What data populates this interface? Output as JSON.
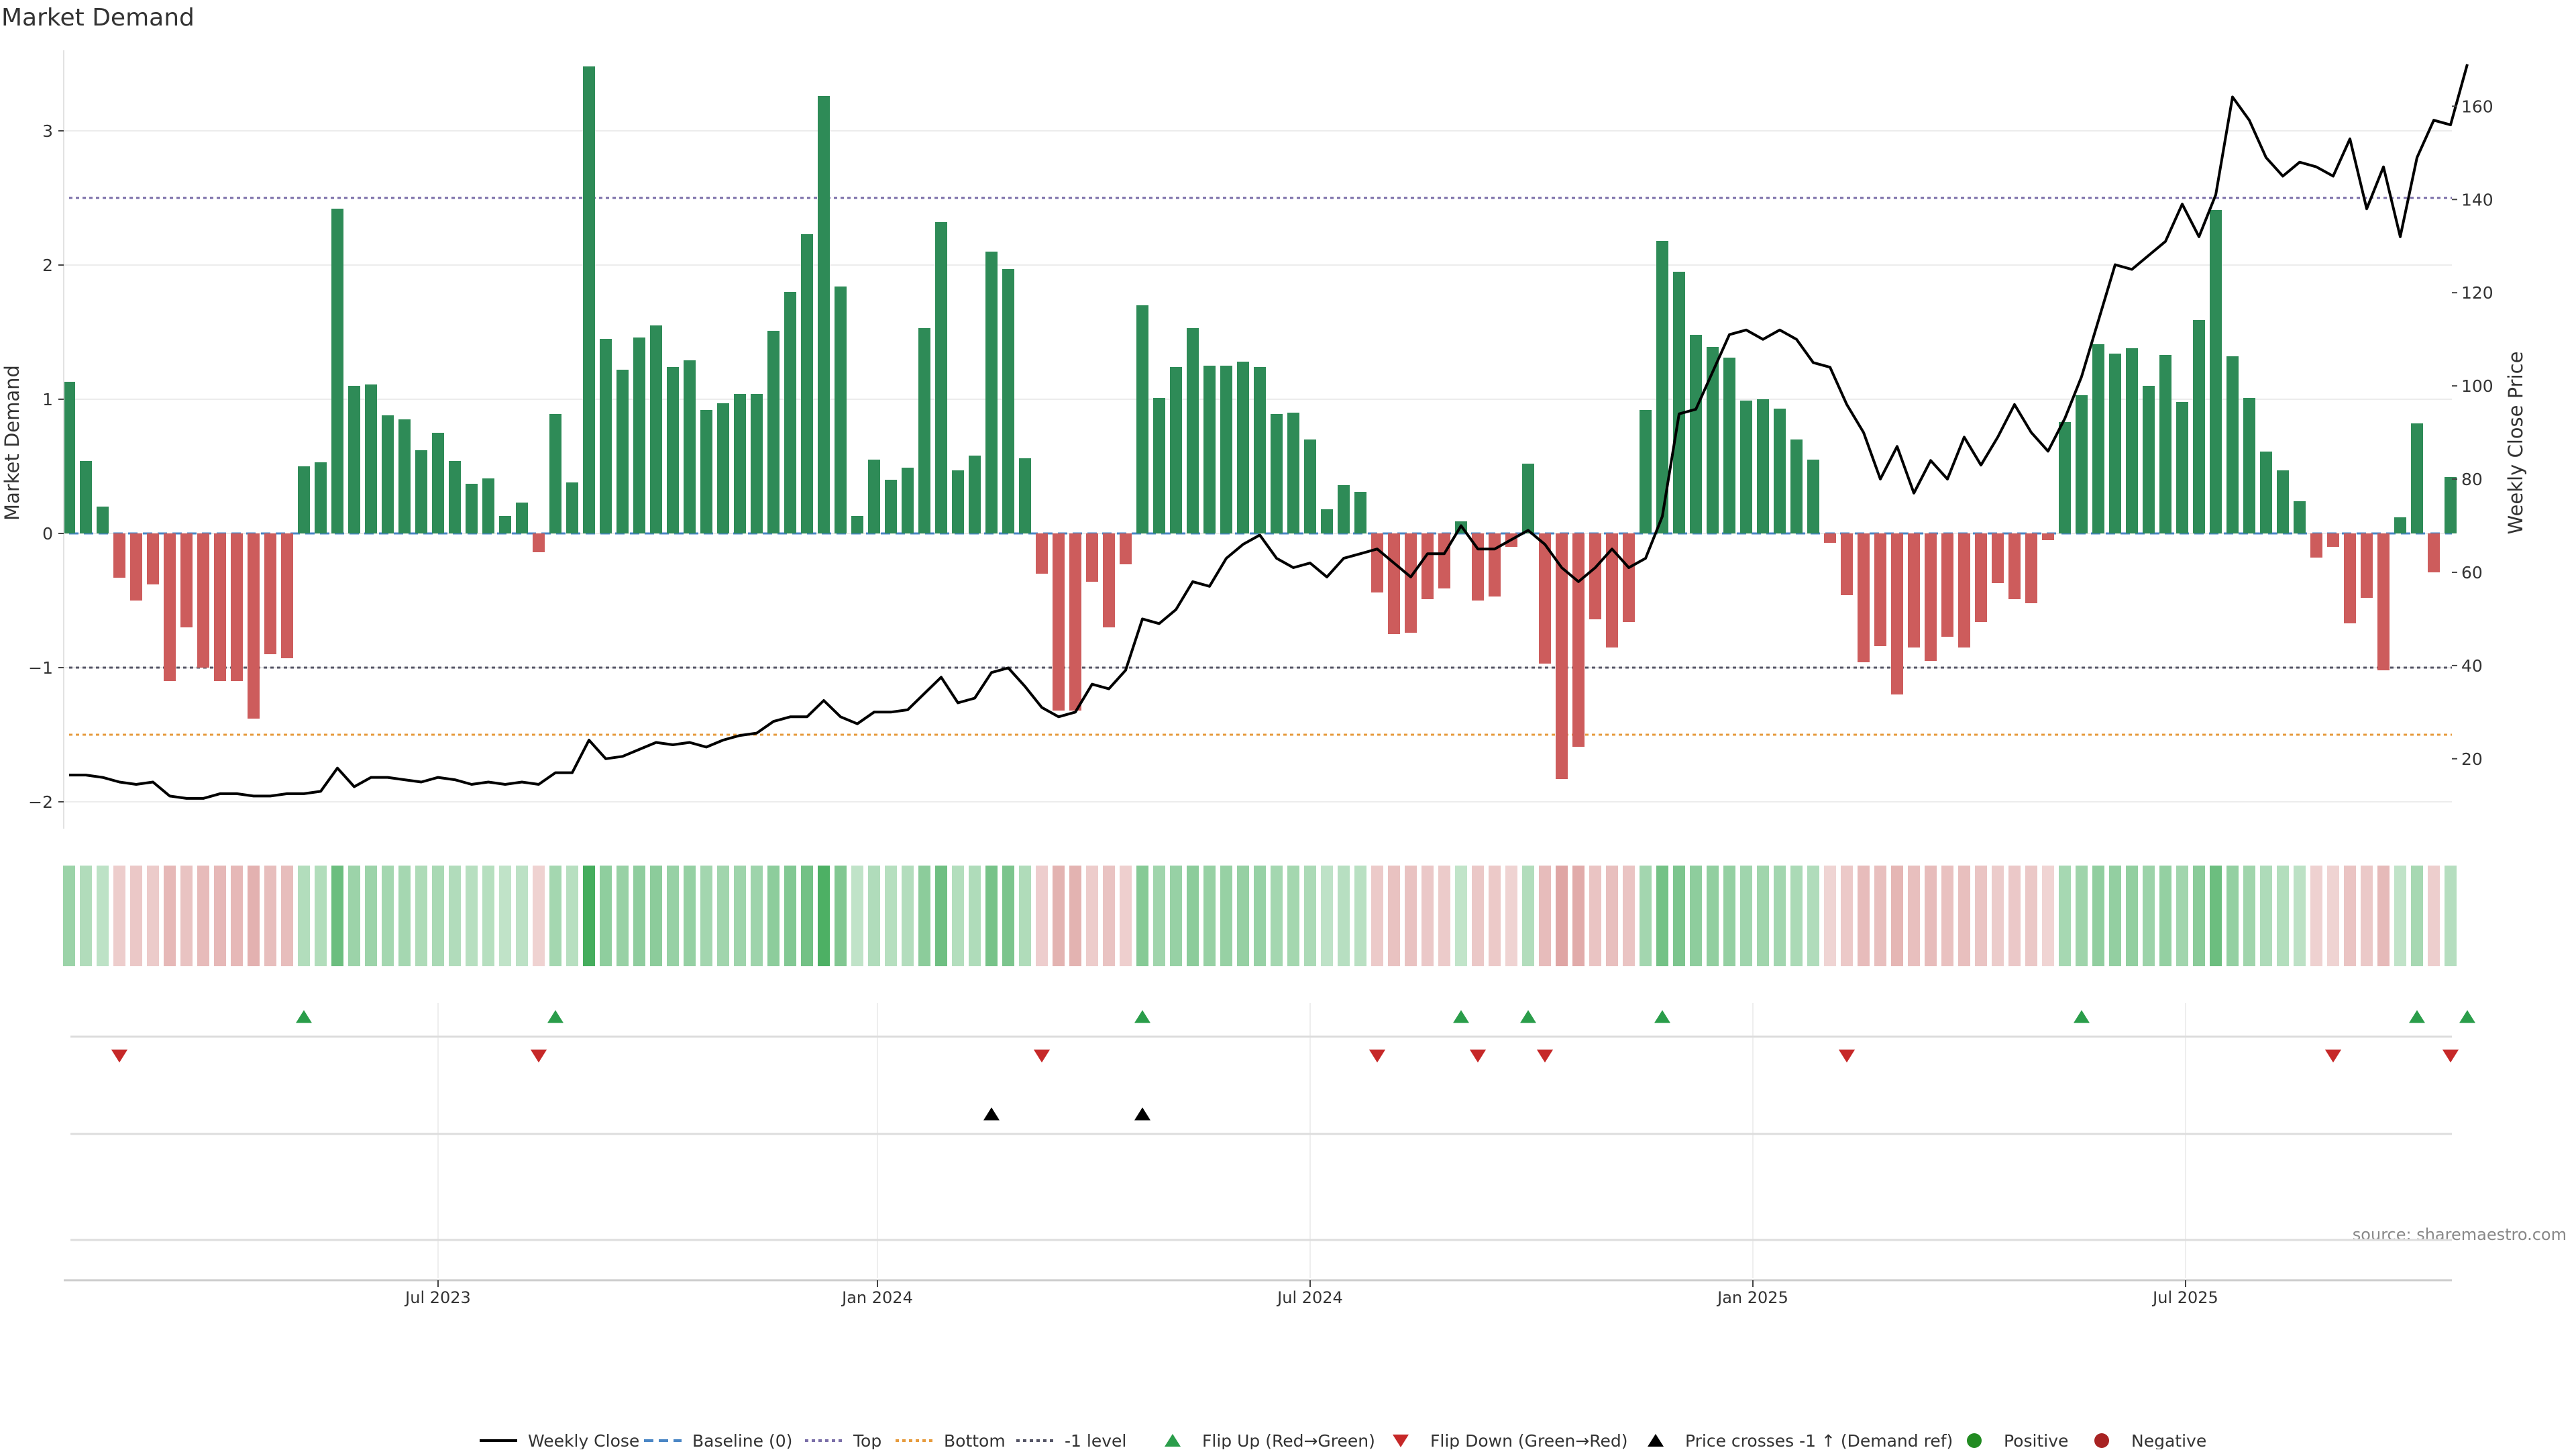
{
  "title": "Market Demand",
  "source": "source: sharemaestro.com",
  "colors": {
    "positive": "#2e8b57",
    "negative": "#cd5c5c",
    "price": "#000000",
    "top": "#7a6ea8",
    "bottom": "#e69a3c",
    "minus_one": "#555566",
    "baseline": "#4a86c5",
    "flip_up": "#2a9d4a",
    "flip_down": "#c62828",
    "legend_positive": "#228b22",
    "legend_negative": "#a82323"
  },
  "chart_data": {
    "type": "bar",
    "ylabel_left": "Market Demand",
    "ylabel_right": "Weekly Close Price",
    "ylim_left": [
      -2.2,
      3.6
    ],
    "ylim_right": [
      5,
      172
    ],
    "yticks_left": [
      "3",
      "2",
      "1",
      "0",
      "−1",
      "−2"
    ],
    "ytick_values_left": [
      3,
      2,
      1,
      0,
      -1,
      -2
    ],
    "yticks_right": [
      "160",
      "140",
      "120",
      "100",
      "80",
      "60",
      "40",
      "20"
    ],
    "ytick_values_right": [
      160,
      140,
      120,
      100,
      80,
      60,
      40,
      20
    ],
    "xticks": [
      {
        "label": "Jul 2023",
        "index": 22
      },
      {
        "label": "Jan 2024",
        "index": 48.2
      },
      {
        "label": "Jul 2024",
        "index": 74
      },
      {
        "label": "Jan 2025",
        "index": 100.4
      },
      {
        "label": "Jul 2025",
        "index": 126.2
      }
    ],
    "reference_lines": {
      "top": 2.5,
      "bottom": -1.5,
      "minus_one": -1,
      "baseline": 0
    },
    "demand": [
      1.13,
      0.54,
      0.2,
      -0.33,
      -0.5,
      -0.38,
      -1.1,
      -0.7,
      -1,
      -1.1,
      -1.1,
      -1.38,
      -0.9,
      -0.93,
      0.5,
      0.53,
      2.42,
      1.1,
      1.11,
      0.88,
      0.85,
      0.62,
      0.75,
      0.54,
      0.37,
      0.41,
      0.13,
      0.23,
      -0.14,
      0.89,
      0.38,
      3.48,
      1.45,
      1.22,
      1.46,
      1.55,
      1.24,
      1.29,
      0.92,
      0.97,
      1.04,
      1.04,
      1.51,
      1.8,
      2.23,
      3.26,
      1.84,
      0.13,
      0.55,
      0.4,
      0.49,
      1.53,
      2.32,
      0.47,
      0.58,
      2.1,
      1.97,
      0.56,
      -0.3,
      -1.32,
      -1.32,
      -0.36,
      -0.7,
      -0.23,
      1.7,
      1.01,
      1.24,
      1.53,
      1.25,
      1.25,
      1.28,
      1.24,
      0.89,
      0.9,
      0.7,
      0.18,
      0.36,
      0.31,
      -0.44,
      -0.75,
      -0.74,
      -0.49,
      -0.41,
      0.09,
      -0.5,
      -0.47,
      -0.1,
      0.52,
      -0.97,
      -1.83,
      -1.59,
      -0.64,
      -0.85,
      -0.66,
      0.92,
      2.18,
      1.95,
      1.48,
      1.39,
      1.31,
      0.99,
      1,
      0.93,
      0.7,
      0.55,
      -0.07,
      -0.46,
      -0.96,
      -0.84,
      -1.2,
      -0.85,
      -0.95,
      -0.77,
      -0.85,
      -0.66,
      -0.37,
      -0.49,
      -0.52,
      -0.05,
      0.83,
      1.03,
      1.41,
      1.34,
      1.38,
      1.1,
      1.33,
      0.98,
      1.59,
      2.41,
      1.32,
      1.01,
      0.61,
      0.47,
      0.24,
      -0.18,
      -0.1,
      -0.67,
      -0.48,
      -1.02,
      0.12,
      0.82,
      -0.29,
      0.42
    ],
    "weekly_close": [
      16.5,
      16.5,
      16,
      15,
      14.5,
      15,
      12,
      11.5,
      11.5,
      12.5,
      12.5,
      12,
      12,
      12.5,
      12.5,
      13,
      18,
      14,
      16,
      16,
      15.5,
      15,
      16,
      15.5,
      14.5,
      15,
      14.5,
      15,
      14.5,
      17,
      17,
      24,
      20,
      20.5,
      22,
      23.5,
      23,
      23.5,
      22.5,
      24,
      25,
      25.5,
      28,
      29,
      29,
      32.5,
      29,
      27.5,
      30,
      30,
      30.5,
      34,
      37.5,
      32,
      33,
      38.5,
      39.5,
      35.5,
      31,
      29,
      30,
      36,
      35,
      39,
      50,
      49,
      52,
      58,
      57,
      63,
      66,
      68,
      63,
      61,
      62,
      59,
      63,
      64,
      65,
      62,
      59,
      64,
      64,
      70,
      65,
      65,
      67,
      69,
      66,
      61,
      58,
      61,
      65,
      61,
      63,
      72,
      94,
      95,
      103,
      111,
      112,
      110,
      112,
      110,
      105,
      104,
      96,
      90,
      80,
      87,
      77,
      84,
      80,
      89,
      83,
      89,
      96,
      90,
      86,
      93,
      102,
      114,
      126,
      125,
      128,
      131,
      139,
      132,
      141,
      162,
      157,
      149,
      145,
      148,
      147,
      145,
      153,
      138,
      147,
      132,
      149,
      157,
      156,
      169
    ],
    "flip_up": [
      14,
      29,
      64,
      83,
      87,
      95,
      120,
      140,
      143
    ],
    "flip_down": [
      3,
      28,
      58,
      78,
      84,
      88,
      106,
      135,
      142
    ],
    "price_cross": [
      55,
      64
    ]
  },
  "legend": [
    {
      "label": "Weekly Close",
      "kind": "solid-line"
    },
    {
      "label": "Baseline (0)",
      "kind": "dashed-line"
    },
    {
      "label": "Top",
      "kind": "dotted-line-top"
    },
    {
      "label": "Bottom",
      "kind": "dotted-line-bottom"
    },
    {
      "label": "-1 level",
      "kind": "dotted-line-minus"
    },
    {
      "label": "Flip Up (Red→Green)",
      "kind": "triangle-up-green"
    },
    {
      "label": "Flip Down (Green→Red)",
      "kind": "triangle-down-red"
    },
    {
      "label": "Price crosses -1 ↑ (Demand ref)",
      "kind": "triangle-up-black"
    },
    {
      "label": "Positive",
      "kind": "dot-green"
    },
    {
      "label": "Negative",
      "kind": "dot-red"
    }
  ]
}
